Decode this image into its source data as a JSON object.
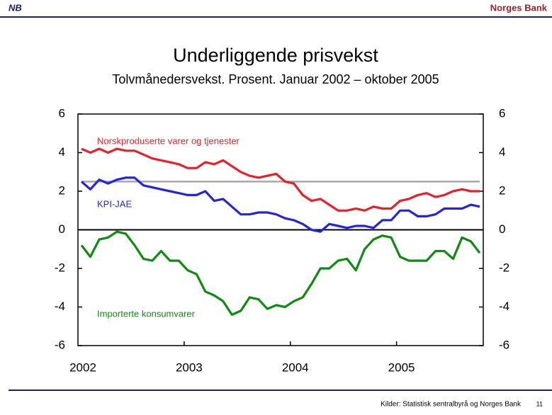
{
  "header": {
    "logo": "NB",
    "brand": "Norges Bank"
  },
  "footer": {
    "source": "Kilder: Statistisk sentralbyrå og Norges Bank",
    "page": "11"
  },
  "chart_data": {
    "type": "line",
    "title": "Underliggende prisvekst",
    "subtitle": "Tolvmånedersvekst. Prosent. Januar 2002 – oktober 2005",
    "categories": [
      "2002",
      null,
      null,
      null,
      null,
      null,
      null,
      null,
      null,
      null,
      null,
      null,
      "2003",
      null,
      null,
      null,
      null,
      null,
      null,
      null,
      null,
      null,
      null,
      null,
      "2004",
      null,
      null,
      null,
      null,
      null,
      null,
      null,
      null,
      null,
      null,
      null,
      "2005",
      null,
      null,
      null,
      null,
      null,
      null,
      null,
      null,
      null
    ],
    "series": [
      {
        "name": "Norskproduserte varer og tjenester",
        "color": "#e8202a",
        "values": [
          4.2,
          4.0,
          4.2,
          4.0,
          4.2,
          4.1,
          4.1,
          3.9,
          3.7,
          3.6,
          3.5,
          3.4,
          3.2,
          3.2,
          3.5,
          3.4,
          3.6,
          3.3,
          3.0,
          2.8,
          2.7,
          2.8,
          2.9,
          2.5,
          2.4,
          1.8,
          1.5,
          1.6,
          1.3,
          1.0,
          1.0,
          1.1,
          1.0,
          1.2,
          1.1,
          1.1,
          1.5,
          1.6,
          1.8,
          1.9,
          1.7,
          1.8,
          2.0,
          2.1,
          2.0,
          2.0
        ]
      },
      {
        "name": "KPI-JAE",
        "color": "#2424e0",
        "values": [
          2.5,
          2.1,
          2.6,
          2.4,
          2.6,
          2.7,
          2.7,
          2.3,
          2.2,
          2.1,
          2.0,
          1.9,
          1.8,
          1.8,
          2.0,
          1.5,
          1.6,
          1.2,
          0.8,
          0.8,
          0.9,
          0.9,
          0.8,
          0.6,
          0.5,
          0.3,
          0.0,
          -0.1,
          0.3,
          0.2,
          0.1,
          0.2,
          0.2,
          0.1,
          0.5,
          0.5,
          1.0,
          1.0,
          0.7,
          0.7,
          0.8,
          1.1,
          1.1,
          1.1,
          1.3,
          1.2
        ]
      },
      {
        "name": "Importerte konsumvarer",
        "color": "#108a10",
        "values": [
          -0.8,
          -1.4,
          -0.5,
          -0.4,
          -0.1,
          -0.2,
          -0.8,
          -1.5,
          -1.6,
          -1.1,
          -1.6,
          -1.6,
          -2.1,
          -2.3,
          -3.2,
          -3.4,
          -3.7,
          -4.4,
          -4.2,
          -3.5,
          -3.6,
          -4.1,
          -3.9,
          -4.0,
          -3.7,
          -3.5,
          -2.8,
          -2.0,
          -2.0,
          -1.6,
          -1.5,
          -2.1,
          -1.0,
          -0.5,
          -0.3,
          -0.4,
          -1.4,
          -1.6,
          -1.6,
          -1.6,
          -1.1,
          -1.1,
          -1.5,
          -0.4,
          -0.6,
          -1.2
        ]
      }
    ],
    "reference_line": {
      "value": 2.5,
      "color": "#a8a8a8"
    },
    "ylim": [
      -6,
      6
    ],
    "yticks": [
      -6,
      -4,
      -2,
      0,
      2,
      4,
      6
    ],
    "y2lim": [
      -6,
      6
    ],
    "y2ticks": [
      -6,
      -4,
      -2,
      0,
      2,
      4,
      6
    ],
    "grid": false
  }
}
